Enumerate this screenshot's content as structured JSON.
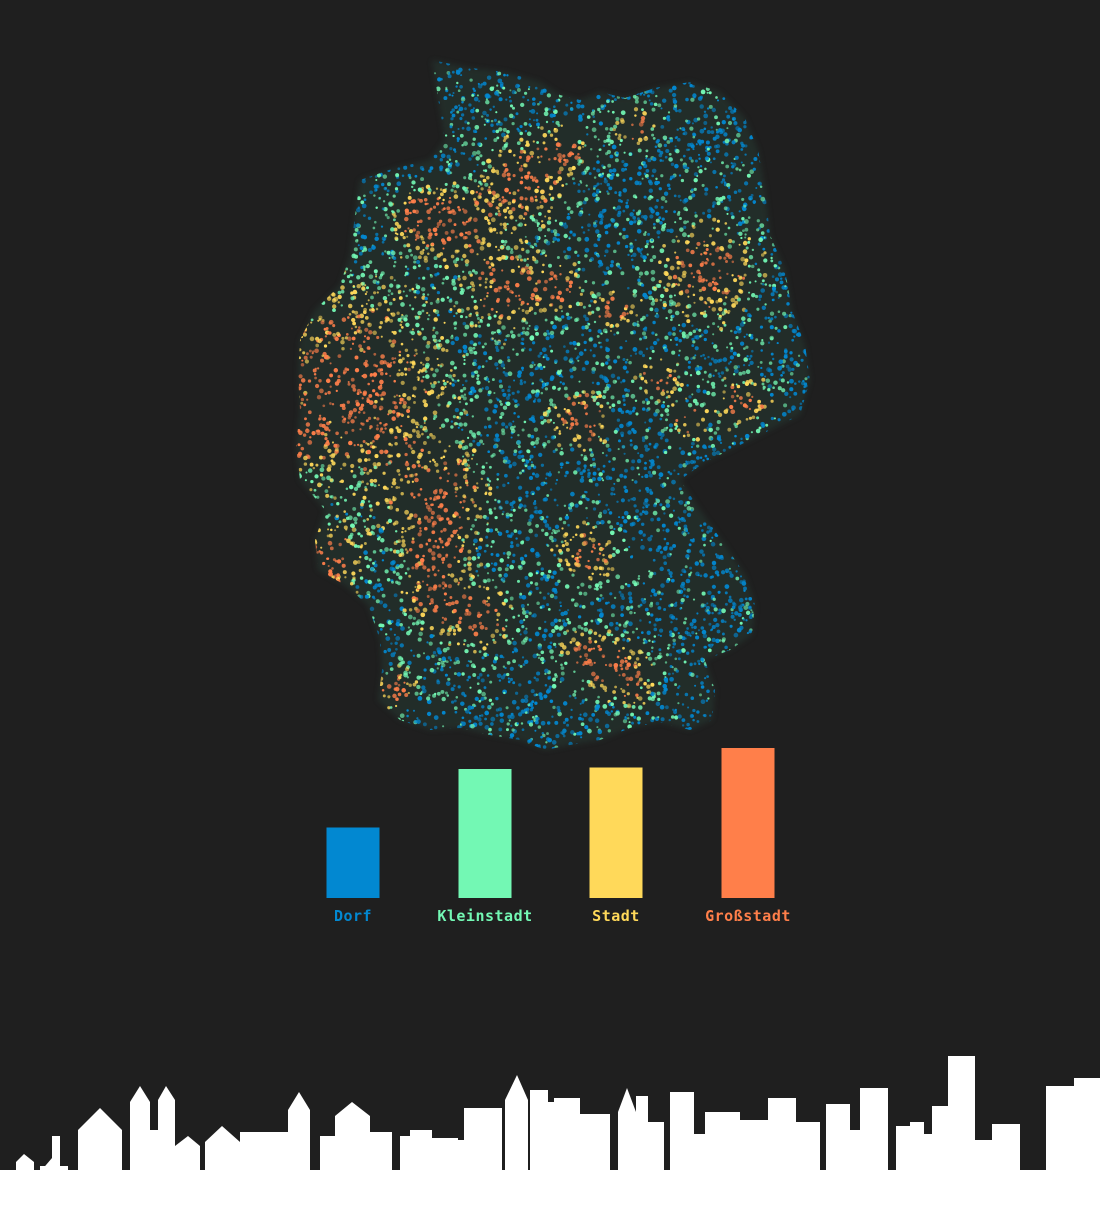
{
  "colors": {
    "background": "#1f1f1f",
    "dorf": "#0288d1",
    "kleinstadt": "#73f8b4",
    "stadt": "#ffd95a",
    "grossstadt": "#ff7f4a",
    "skyline": "#ffffff"
  },
  "map": {
    "icon": "germany-dot-density-map"
  },
  "chart_data": {
    "type": "bar",
    "categories": [
      "Dorf",
      "Kleinstadt",
      "Stadt",
      "Großstadt"
    ],
    "values": [
      0.47,
      0.86,
      0.87,
      1.0
    ],
    "colors": [
      "#0288d1",
      "#73f8b4",
      "#ffd95a",
      "#ff7f4a"
    ],
    "title": "",
    "xlabel": "",
    "ylabel": "",
    "ylim": [
      0,
      1
    ],
    "grid": false,
    "legend": "none"
  },
  "skyline": {
    "icon": "city-skyline-silhouette"
  }
}
